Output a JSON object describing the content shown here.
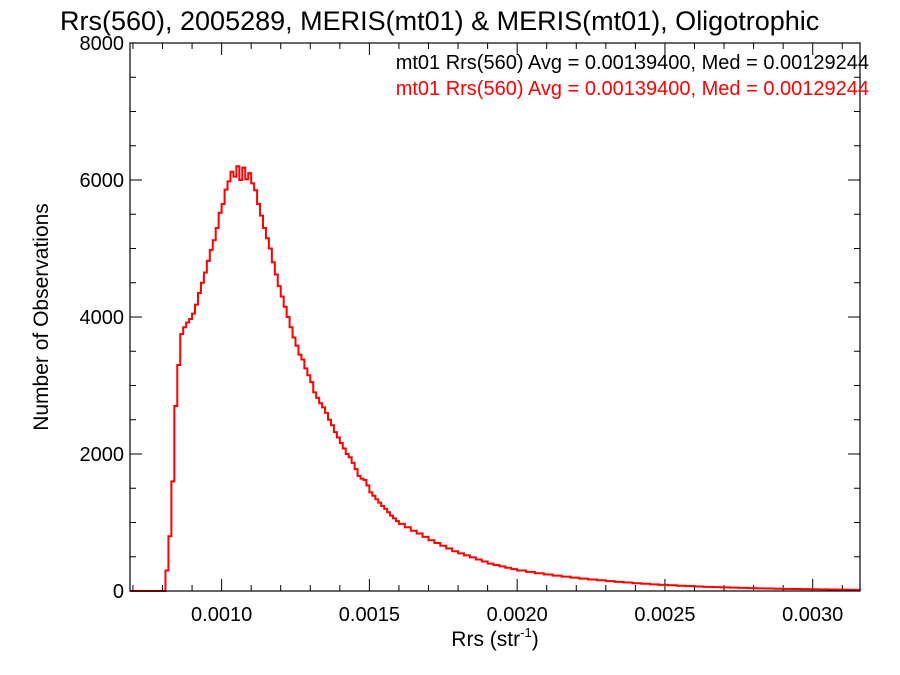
{
  "chart_data": {
    "type": "line",
    "title": "Rrs(560), 2005289, MERIS(mt01) & MERIS(mt01), Oligotrophic",
    "xlabel": "Rrs (str",
    "xlabel_sup": "-1",
    "xlabel_suffix": ")",
    "ylabel": "Number of Observations",
    "xlim": [
      0.00069,
      0.00316
    ],
    "ylim": [
      0,
      8000
    ],
    "xticks": [
      {
        "value": 0.001,
        "label": "0.0010"
      },
      {
        "value": 0.0015,
        "label": "0.0015"
      },
      {
        "value": 0.002,
        "label": "0.0020"
      },
      {
        "value": 0.0025,
        "label": "0.0025"
      },
      {
        "value": 0.003,
        "label": "0.0030"
      }
    ],
    "yticks": [
      {
        "value": 0,
        "label": "0"
      },
      {
        "value": 2000,
        "label": "2000"
      },
      {
        "value": 4000,
        "label": "4000"
      },
      {
        "value": 6000,
        "label": "6000"
      },
      {
        "value": 8000,
        "label": "8000"
      }
    ],
    "annotations": [
      {
        "text": "mt01 Rrs(560) Avg = 0.00139400, Med = 0.00129244",
        "color": "#000000"
      },
      {
        "text": "mt01 Rrs(560) Avg = 0.00139400, Med = 0.00129244",
        "color": "#ff0000"
      }
    ],
    "series": [
      {
        "color": "#ff0000",
        "style": "step",
        "points": [
          [
            0.00069,
            0
          ],
          [
            0.00075,
            0
          ],
          [
            0.0008,
            0
          ],
          [
            0.00081,
            300
          ],
          [
            0.00082,
            800
          ],
          [
            0.00083,
            1600
          ],
          [
            0.00084,
            2700
          ],
          [
            0.00085,
            3300
          ],
          [
            0.00086,
            3750
          ],
          [
            0.00087,
            3850
          ],
          [
            0.00088,
            3920
          ],
          [
            0.00089,
            3970
          ],
          [
            0.0009,
            4050
          ],
          [
            0.00091,
            4180
          ],
          [
            0.00092,
            4350
          ],
          [
            0.00093,
            4500
          ],
          [
            0.00094,
            4650
          ],
          [
            0.00095,
            4820
          ],
          [
            0.00096,
            4980
          ],
          [
            0.00097,
            5120
          ],
          [
            0.00098,
            5300
          ],
          [
            0.00099,
            5520
          ],
          [
            0.001,
            5650
          ],
          [
            0.00101,
            5860
          ],
          [
            0.00102,
            5980
          ],
          [
            0.00103,
            6120
          ],
          [
            0.00104,
            6050
          ],
          [
            0.00105,
            6200
          ],
          [
            0.00106,
            6000
          ],
          [
            0.00107,
            6180
          ],
          [
            0.00108,
            6010
          ],
          [
            0.00109,
            6100
          ],
          [
            0.0011,
            5950
          ],
          [
            0.00111,
            5850
          ],
          [
            0.00112,
            5650
          ],
          [
            0.00113,
            5480
          ],
          [
            0.00114,
            5300
          ],
          [
            0.00115,
            5150
          ],
          [
            0.00116,
            5000
          ],
          [
            0.00117,
            4800
          ],
          [
            0.00118,
            4620
          ],
          [
            0.00119,
            4450
          ],
          [
            0.0012,
            4300
          ],
          [
            0.00121,
            4150
          ],
          [
            0.00122,
            4000
          ],
          [
            0.00123,
            3850
          ],
          [
            0.00124,
            3700
          ],
          [
            0.00125,
            3580
          ],
          [
            0.00126,
            3450
          ],
          [
            0.00127,
            3380
          ],
          [
            0.00128,
            3250
          ],
          [
            0.00129,
            3150
          ],
          [
            0.0013,
            3050
          ],
          [
            0.00131,
            2900
          ],
          [
            0.00132,
            2820
          ],
          [
            0.00133,
            2740
          ],
          [
            0.00134,
            2680
          ],
          [
            0.00135,
            2600
          ],
          [
            0.00136,
            2500
          ],
          [
            0.00137,
            2420
          ],
          [
            0.00138,
            2320
          ],
          [
            0.00139,
            2240
          ],
          [
            0.0014,
            2160
          ],
          [
            0.00141,
            2080
          ],
          [
            0.00142,
            2000
          ],
          [
            0.00143,
            1950
          ],
          [
            0.00144,
            1870
          ],
          [
            0.00145,
            1780
          ],
          [
            0.00146,
            1680
          ],
          [
            0.00147,
            1640
          ],
          [
            0.00148,
            1620
          ],
          [
            0.00149,
            1540
          ],
          [
            0.0015,
            1440
          ],
          [
            0.00151,
            1390
          ],
          [
            0.00152,
            1340
          ],
          [
            0.00153,
            1290
          ],
          [
            0.00154,
            1240
          ],
          [
            0.00155,
            1200
          ],
          [
            0.00156,
            1150
          ],
          [
            0.00157,
            1100
          ],
          [
            0.00158,
            1060
          ],
          [
            0.00159,
            1020
          ],
          [
            0.0016,
            980
          ],
          [
            0.00162,
            930
          ],
          [
            0.00164,
            880
          ],
          [
            0.00166,
            840
          ],
          [
            0.00168,
            790
          ],
          [
            0.0017,
            740
          ],
          [
            0.00172,
            700
          ],
          [
            0.00174,
            660
          ],
          [
            0.00176,
            620
          ],
          [
            0.00178,
            580
          ],
          [
            0.0018,
            550
          ],
          [
            0.00182,
            520
          ],
          [
            0.00184,
            490
          ],
          [
            0.00186,
            460
          ],
          [
            0.00188,
            430
          ],
          [
            0.0019,
            400
          ],
          [
            0.00192,
            380
          ],
          [
            0.00194,
            360
          ],
          [
            0.00196,
            340
          ],
          [
            0.00198,
            320
          ],
          [
            0.002,
            300
          ],
          [
            0.00203,
            280
          ],
          [
            0.00206,
            260
          ],
          [
            0.00209,
            240
          ],
          [
            0.00212,
            225
          ],
          [
            0.00215,
            210
          ],
          [
            0.00218,
            195
          ],
          [
            0.00221,
            180
          ],
          [
            0.00224,
            168
          ],
          [
            0.00227,
            156
          ],
          [
            0.0023,
            145
          ],
          [
            0.00233,
            134
          ],
          [
            0.00236,
            124
          ],
          [
            0.00239,
            114
          ],
          [
            0.00242,
            105
          ],
          [
            0.00245,
            97
          ],
          [
            0.00248,
            90
          ],
          [
            0.00251,
            83
          ],
          [
            0.00254,
            77
          ],
          [
            0.00257,
            71
          ],
          [
            0.0026,
            66
          ],
          [
            0.00263,
            61
          ],
          [
            0.00266,
            57
          ],
          [
            0.00269,
            53
          ],
          [
            0.00272,
            49
          ],
          [
            0.00275,
            45
          ],
          [
            0.00278,
            42
          ],
          [
            0.00281,
            39
          ],
          [
            0.00284,
            36
          ],
          [
            0.00287,
            33
          ],
          [
            0.0029,
            31
          ],
          [
            0.00293,
            29
          ],
          [
            0.00296,
            27
          ],
          [
            0.00299,
            25
          ],
          [
            0.00302,
            23
          ],
          [
            0.00305,
            21
          ],
          [
            0.00308,
            20
          ],
          [
            0.00311,
            18
          ],
          [
            0.00314,
            17
          ],
          [
            0.00316,
            16
          ]
        ]
      }
    ]
  }
}
